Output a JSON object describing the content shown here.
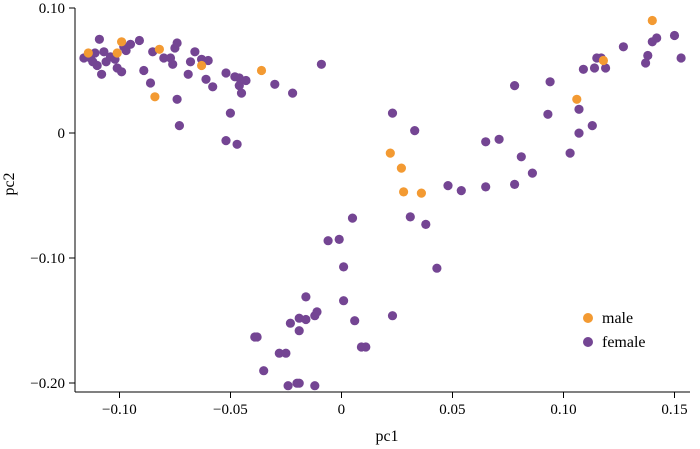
{
  "chart_data": {
    "type": "scatter",
    "title": "",
    "xlabel": "pc1",
    "ylabel": "pc2",
    "xlim": [
      -0.12,
      0.157
    ],
    "ylim": [
      -0.207,
      0.1
    ],
    "xticks": [
      -0.1,
      -0.05,
      0,
      0.05,
      0.1,
      0.15
    ],
    "xtick_labels": [
      "−0.10",
      "−0.05",
      "0",
      "0.05",
      "0.10",
      "0.15"
    ],
    "yticks": [
      -0.2,
      -0.1,
      0,
      0.1
    ],
    "ytick_labels": [
      "−0.20",
      "−0.10",
      "0",
      "0.10"
    ],
    "grid": false,
    "legend": {
      "placement": "bottom-right"
    },
    "series": [
      {
        "name": "male",
        "color": "#F39A32",
        "points": [
          [
            -0.114,
            0.064
          ],
          [
            -0.101,
            0.064
          ],
          [
            -0.099,
            0.073
          ],
          [
            -0.082,
            0.067
          ],
          [
            -0.084,
            0.029
          ],
          [
            -0.063,
            0.054
          ],
          [
            -0.036,
            0.05
          ],
          [
            0.022,
            -0.016
          ],
          [
            0.027,
            -0.028
          ],
          [
            0.028,
            -0.047
          ],
          [
            0.036,
            -0.048
          ],
          [
            0.106,
            0.027
          ],
          [
            0.118,
            0.058
          ],
          [
            0.14,
            0.09
          ]
        ]
      },
      {
        "name": "female",
        "color": "#744593",
        "points": [
          [
            -0.116,
            0.06
          ],
          [
            -0.113,
            0.06
          ],
          [
            -0.112,
            0.057
          ],
          [
            -0.11,
            0.054
          ],
          [
            -0.111,
            0.064
          ],
          [
            -0.109,
            0.075
          ],
          [
            -0.107,
            0.065
          ],
          [
            -0.106,
            0.057
          ],
          [
            -0.108,
            0.047
          ],
          [
            -0.104,
            0.061
          ],
          [
            -0.102,
            0.059
          ],
          [
            -0.101,
            0.052
          ],
          [
            -0.099,
            0.049
          ],
          [
            -0.098,
            0.069
          ],
          [
            -0.097,
            0.066
          ],
          [
            -0.095,
            0.071
          ],
          [
            -0.091,
            0.074
          ],
          [
            -0.089,
            0.05
          ],
          [
            -0.085,
            0.065
          ],
          [
            -0.086,
            0.04
          ],
          [
            -0.08,
            0.06
          ],
          [
            -0.076,
            0.055
          ],
          [
            -0.075,
            0.068
          ],
          [
            -0.074,
            0.072
          ],
          [
            -0.077,
            0.06
          ],
          [
            -0.074,
            0.027
          ],
          [
            -0.073,
            0.006
          ],
          [
            -0.069,
            0.047
          ],
          [
            -0.068,
            0.057
          ],
          [
            -0.066,
            0.065
          ],
          [
            -0.063,
            0.059
          ],
          [
            -0.06,
            0.058
          ],
          [
            -0.061,
            0.043
          ],
          [
            -0.058,
            0.037
          ],
          [
            -0.052,
            0.048
          ],
          [
            -0.05,
            0.016
          ],
          [
            -0.052,
            -0.006
          ],
          [
            -0.048,
            0.045
          ],
          [
            -0.046,
            0.044
          ],
          [
            -0.046,
            0.038
          ],
          [
            -0.045,
            0.032
          ],
          [
            -0.043,
            0.042
          ],
          [
            -0.047,
            -0.009
          ],
          [
            -0.03,
            0.039
          ],
          [
            -0.022,
            0.032
          ],
          [
            -0.009,
            0.055
          ],
          [
            0.023,
            0.016
          ],
          [
            0.033,
            0.002
          ],
          [
            0.048,
            -0.042
          ],
          [
            0.054,
            -0.046
          ],
          [
            0.065,
            -0.007
          ],
          [
            0.065,
            -0.043
          ],
          [
            0.071,
            -0.005
          ],
          [
            0.078,
            -0.041
          ],
          [
            0.081,
            -0.019
          ],
          [
            0.086,
            -0.032
          ],
          [
            0.078,
            0.038
          ],
          [
            0.094,
            0.041
          ],
          [
            0.093,
            0.015
          ],
          [
            0.103,
            -0.016
          ],
          [
            0.107,
            0.019
          ],
          [
            0.107,
            0.0
          ],
          [
            0.109,
            0.051
          ],
          [
            0.113,
            0.006
          ],
          [
            0.114,
            0.052
          ],
          [
            0.115,
            0.06
          ],
          [
            0.117,
            0.06
          ],
          [
            0.119,
            0.052
          ],
          [
            0.127,
            0.069
          ],
          [
            0.137,
            0.056
          ],
          [
            0.138,
            0.062
          ],
          [
            0.14,
            0.073
          ],
          [
            0.142,
            0.076
          ],
          [
            0.15,
            0.078
          ],
          [
            0.153,
            0.06
          ],
          [
            0.005,
            -0.068
          ],
          [
            -0.006,
            -0.086
          ],
          [
            -0.001,
            -0.085
          ],
          [
            0.001,
            -0.107
          ],
          [
            0.001,
            -0.134
          ],
          [
            0.031,
            -0.067
          ],
          [
            0.038,
            -0.073
          ],
          [
            0.043,
            -0.108
          ],
          [
            0.023,
            -0.146
          ],
          [
            0.006,
            -0.15
          ],
          [
            0.011,
            -0.171
          ],
          [
            0.009,
            -0.171
          ],
          [
            -0.016,
            -0.131
          ],
          [
            -0.019,
            -0.148
          ],
          [
            -0.016,
            -0.149
          ],
          [
            -0.012,
            -0.146
          ],
          [
            -0.011,
            -0.143
          ],
          [
            -0.019,
            -0.158
          ],
          [
            -0.038,
            -0.163
          ],
          [
            -0.039,
            -0.163
          ],
          [
            -0.028,
            -0.176
          ],
          [
            -0.035,
            -0.19
          ],
          [
            -0.025,
            -0.176
          ],
          [
            -0.02,
            -0.2
          ],
          [
            -0.019,
            -0.2
          ],
          [
            -0.024,
            -0.202
          ],
          [
            -0.012,
            -0.202
          ],
          [
            -0.023,
            -0.152
          ]
        ]
      }
    ]
  }
}
